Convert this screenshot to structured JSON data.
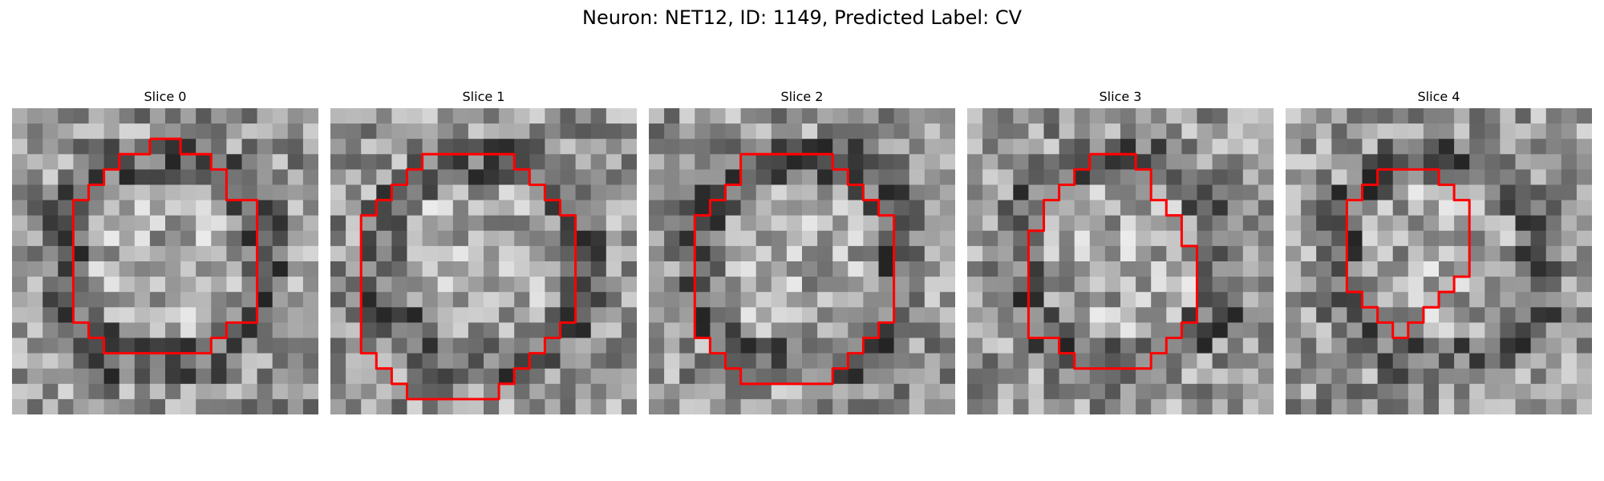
{
  "figure": {
    "title": "Neuron: NET12, ID: 1149, Predicted Label: CV"
  },
  "slices": [
    {
      "label": "Slice 0",
      "contour": [
        [
          9,
          2
        ],
        [
          11,
          2
        ],
        [
          11,
          3
        ],
        [
          13,
          3
        ],
        [
          13,
          4
        ],
        [
          14,
          4
        ],
        [
          14,
          6
        ],
        [
          16,
          6
        ],
        [
          16,
          12
        ],
        [
          16,
          14
        ],
        [
          14,
          14
        ],
        [
          14,
          15
        ],
        [
          13,
          15
        ],
        [
          13,
          16
        ],
        [
          11,
          16
        ],
        [
          9,
          16
        ],
        [
          7,
          16
        ],
        [
          6,
          16
        ],
        [
          6,
          15
        ],
        [
          5,
          15
        ],
        [
          5,
          14
        ],
        [
          4,
          14
        ],
        [
          4,
          12
        ],
        [
          4,
          8
        ],
        [
          4,
          6
        ],
        [
          5,
          6
        ],
        [
          5,
          5
        ],
        [
          6,
          5
        ],
        [
          6,
          4
        ],
        [
          7,
          4
        ],
        [
          7,
          3
        ],
        [
          9,
          3
        ],
        [
          9,
          2
        ]
      ]
    },
    {
      "label": "Slice 1",
      "contour": [
        [
          7,
          3
        ],
        [
          9,
          3
        ],
        [
          11,
          3
        ],
        [
          12,
          3
        ],
        [
          12,
          4
        ],
        [
          13,
          4
        ],
        [
          13,
          5
        ],
        [
          14,
          5
        ],
        [
          14,
          6
        ],
        [
          15,
          6
        ],
        [
          15,
          7
        ],
        [
          16,
          7
        ],
        [
          16,
          10
        ],
        [
          16,
          14
        ],
        [
          15,
          14
        ],
        [
          15,
          15
        ],
        [
          14,
          15
        ],
        [
          14,
          16
        ],
        [
          13,
          16
        ],
        [
          13,
          17
        ],
        [
          12,
          17
        ],
        [
          12,
          18
        ],
        [
          11,
          18
        ],
        [
          11,
          19
        ],
        [
          8,
          19
        ],
        [
          6,
          19
        ],
        [
          5,
          19
        ],
        [
          5,
          18
        ],
        [
          4,
          18
        ],
        [
          4,
          17
        ],
        [
          3,
          17
        ],
        [
          3,
          16
        ],
        [
          2,
          16
        ],
        [
          2,
          13
        ],
        [
          2,
          9
        ],
        [
          2,
          7
        ],
        [
          3,
          7
        ],
        [
          3,
          6
        ],
        [
          4,
          6
        ],
        [
          4,
          5
        ],
        [
          5,
          5
        ],
        [
          5,
          4
        ],
        [
          6,
          4
        ],
        [
          6,
          3
        ],
        [
          7,
          3
        ]
      ]
    },
    {
      "label": "Slice 2",
      "contour": [
        [
          6,
          3
        ],
        [
          8,
          3
        ],
        [
          10,
          3
        ],
        [
          12,
          3
        ],
        [
          12,
          4
        ],
        [
          13,
          4
        ],
        [
          13,
          5
        ],
        [
          14,
          5
        ],
        [
          14,
          6
        ],
        [
          15,
          6
        ],
        [
          15,
          7
        ],
        [
          16,
          7
        ],
        [
          16,
          12
        ],
        [
          16,
          14
        ],
        [
          15,
          14
        ],
        [
          15,
          15
        ],
        [
          14,
          15
        ],
        [
          14,
          16
        ],
        [
          13,
          16
        ],
        [
          13,
          17
        ],
        [
          12,
          17
        ],
        [
          12,
          18
        ],
        [
          10,
          18
        ],
        [
          7,
          18
        ],
        [
          6,
          18
        ],
        [
          6,
          17
        ],
        [
          5,
          17
        ],
        [
          5,
          16
        ],
        [
          4,
          16
        ],
        [
          4,
          15
        ],
        [
          3,
          15
        ],
        [
          3,
          14
        ],
        [
          3,
          12
        ],
        [
          3,
          8
        ],
        [
          3,
          7
        ],
        [
          4,
          7
        ],
        [
          4,
          6
        ],
        [
          5,
          6
        ],
        [
          5,
          5
        ],
        [
          6,
          5
        ],
        [
          6,
          3
        ]
      ]
    },
    {
      "label": "Slice 3",
      "contour": [
        [
          8,
          3
        ],
        [
          9,
          3
        ],
        [
          11,
          3
        ],
        [
          11,
          4
        ],
        [
          12,
          4
        ],
        [
          12,
          5
        ],
        [
          12,
          6
        ],
        [
          13,
          6
        ],
        [
          13,
          7
        ],
        [
          14,
          7
        ],
        [
          14,
          8
        ],
        [
          14,
          9
        ],
        [
          15,
          9
        ],
        [
          15,
          10
        ],
        [
          15,
          13
        ],
        [
          15,
          14
        ],
        [
          14,
          14
        ],
        [
          14,
          15
        ],
        [
          13,
          15
        ],
        [
          13,
          16
        ],
        [
          12,
          16
        ],
        [
          12,
          17
        ],
        [
          10,
          17
        ],
        [
          8,
          17
        ],
        [
          7,
          17
        ],
        [
          7,
          16
        ],
        [
          6,
          16
        ],
        [
          6,
          15
        ],
        [
          5,
          15
        ],
        [
          4,
          15
        ],
        [
          4,
          13
        ],
        [
          4,
          10
        ],
        [
          4,
          8
        ],
        [
          5,
          8
        ],
        [
          5,
          6
        ],
        [
          6,
          6
        ],
        [
          6,
          5
        ],
        [
          7,
          5
        ],
        [
          7,
          4
        ],
        [
          8,
          4
        ],
        [
          8,
          3
        ]
      ]
    },
    {
      "label": "Slice 4",
      "contour": [
        [
          6,
          4
        ],
        [
          9,
          4
        ],
        [
          10,
          4
        ],
        [
          10,
          5
        ],
        [
          11,
          5
        ],
        [
          11,
          6
        ],
        [
          12,
          6
        ],
        [
          12,
          9
        ],
        [
          12,
          11
        ],
        [
          11,
          11
        ],
        [
          11,
          12
        ],
        [
          10,
          12
        ],
        [
          10,
          13
        ],
        [
          9,
          13
        ],
        [
          9,
          14
        ],
        [
          8,
          14
        ],
        [
          8,
          15
        ],
        [
          7,
          15
        ],
        [
          7,
          14
        ],
        [
          6,
          14
        ],
        [
          6,
          13
        ],
        [
          5,
          13
        ],
        [
          5,
          12
        ],
        [
          4,
          12
        ],
        [
          4,
          11
        ],
        [
          4,
          9
        ],
        [
          4,
          6
        ],
        [
          5,
          6
        ],
        [
          5,
          5
        ],
        [
          6,
          5
        ],
        [
          6,
          4
        ]
      ]
    }
  ],
  "colors": {
    "contour": "#ff0000"
  }
}
